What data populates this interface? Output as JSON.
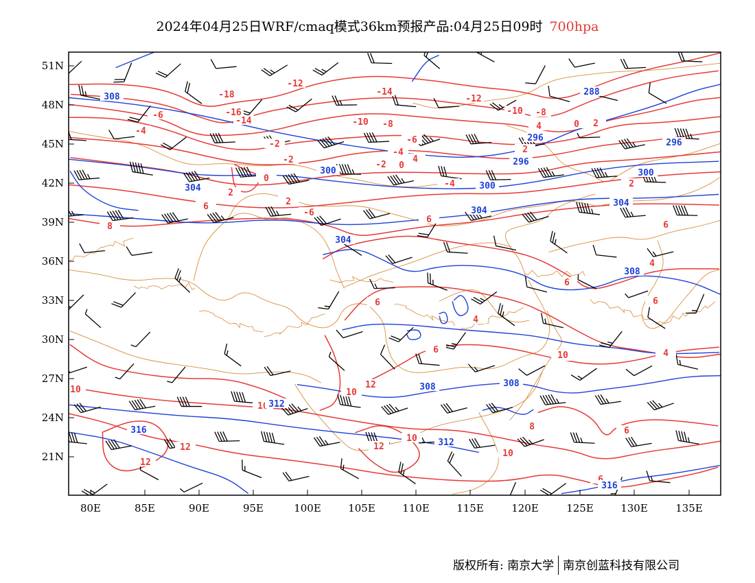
{
  "header": {
    "title": "2024年04月25日WRF/cmaq模式36km预报产品:04月25日09时",
    "level": "700hpa",
    "level_color": "#e53935"
  },
  "map": {
    "lat_ticks": [
      "51N",
      "48N",
      "45N",
      "42N",
      "39N",
      "36N",
      "33N",
      "30N",
      "27N",
      "24N",
      "21N"
    ],
    "lon_ticks": [
      "80E",
      "85E",
      "90E",
      "95E",
      "100E",
      "105E",
      "110E",
      "115E",
      "120E",
      "125E",
      "130E",
      "135E"
    ],
    "temperature_labels": [
      "-18",
      "-16",
      "-14",
      "-12",
      "-14",
      "-12",
      "-10",
      "-8",
      "-10",
      "-8",
      "-6",
      "-6",
      "-4",
      "-4",
      "-2",
      "0",
      "-2",
      "-2",
      "0",
      "-4",
      "2",
      "-6",
      "0",
      "2",
      "2",
      "4",
      "4",
      "2",
      "4",
      "6",
      "6",
      "6",
      "6",
      "6",
      "6",
      "8",
      "10",
      "10",
      "10",
      "10",
      "12",
      "12",
      "12",
      "10",
      "8",
      "6",
      "4",
      "6",
      "4",
      "2",
      "6",
      "6",
      "10",
      "12"
    ],
    "geopotential_labels": [
      "308",
      "288",
      "296",
      "296",
      "300",
      "304",
      "300",
      "304",
      "304",
      "296",
      "300",
      "304",
      "308",
      "308",
      "308",
      "312",
      "312",
      "316",
      "316"
    ],
    "colors": {
      "temperature": "#e53935",
      "geopotential": "#1e40d8",
      "border": "#d98c3a",
      "wind_barb": "#000000"
    }
  },
  "footer": {
    "copyright": "版权所有: 南京大学",
    "company": "南京创蓝科技有限公司"
  }
}
